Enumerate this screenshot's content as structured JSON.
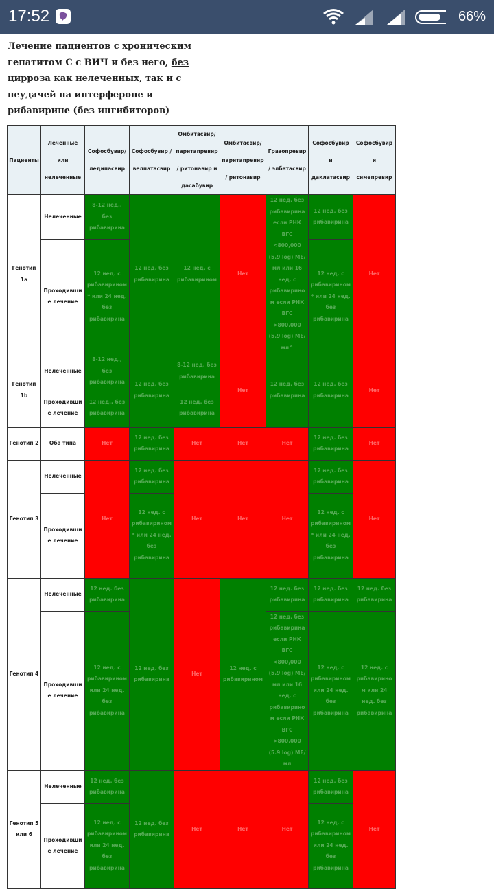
{
  "status_bar": {
    "time": "17:52",
    "battery": "66%"
  },
  "article": {
    "title_start": "Лечение пациентов с хроническим гепатитом С с ВИЧ и без него,",
    "title_link": "без цирроза",
    "title_end": "как нелеченных, так и с неудачей на интерфероне и рибавирине (без ингибиторов)"
  },
  "table": {
    "header": [
      "Пациенты",
      "Леченные или нелеченные",
      "Софосбувир/ ледипасвир",
      "Софосбувир / велпатасвир",
      "Омбитасвир/ паритапревир/ ритонавир и дасабувир",
      "Омбитасвир/ паритапревир/ ритонавир",
      "Гразопревир/ элбатасвир",
      "Софосбувир и даклатасвир",
      "Софосбувир и симепревир"
    ],
    "groups": [
      {
        "genotype": "Генотип 1a",
        "rows": [
          {
            "patients": "Нелеченные",
            "cells": [
              {
                "text": "8-12 нед., без рибавирина",
                "color": "green"
              },
              {
                "text": "12 нед. без рибавирина",
                "color": "green"
              },
              {
                "text": "12 нед. с рибавирином",
                "color": "green"
              },
              {
                "text": "Нет",
                "color": "red"
              },
              {
                "text": "12 нед. без рибавирина если РНК ВГС <800,000 (5.9 log) МЕ/мл или 16 нед. с рибавирином если РНК ВГС >800,000 (5.9 log) МЕ/мл^",
                "color": "green"
              },
              {
                "text": "12 нед. без рибавирина",
                "color": "green"
              },
              {
                "text": "Нет",
                "color": "red"
              }
            ]
          },
          {
            "patients": "Проходившие лечение",
            "cells": [
              {
                "text": "12 нед. с рибавирином* или 24 нед. без рибавирина",
                "color": "green"
              },
              {
                "text": "12 нед. с рибавирином* или 24 нед. без рибавирина",
                "color": "green"
              }
            ]
          }
        ]
      },
      {
        "genotype": "Генотип 1b",
        "rows": [
          {
            "patients": "Нелеченные",
            "cells": [
              {
                "text": "8-12 нед., без рибавирина",
                "color": "green"
              },
              {
                "text": "12 нед. без рибавирина",
                "color": "green"
              },
              {
                "text": "8-12 нед. без рибавирина",
                "color": "green"
              },
              {
                "text": "Нет",
                "color": "red"
              },
              {
                "text": "12 нед. без рибавирина",
                "color": "green"
              },
              {
                "text": "12 нед. без рибавирина",
                "color": "green"
              },
              {
                "text": "Нет",
                "color": "red"
              }
            ]
          },
          {
            "patients": "Проходившие лечение",
            "cells": [
              {
                "text": "12 нед., без рибавирина",
                "color": "green"
              },
              {
                "text": "12 нед. без рибавирина",
                "color": "green"
              }
            ]
          }
        ]
      },
      {
        "genotype": "Генотип 2",
        "rows": [
          {
            "patients": "Оба типа",
            "cells": [
              {
                "text": "Нет",
                "color": "red"
              },
              {
                "text": "12 нед. без рибавирина",
                "color": "green"
              },
              {
                "text": "Нет",
                "color": "red"
              },
              {
                "text": "Нет",
                "color": "red"
              },
              {
                "text": "Нет",
                "color": "red"
              },
              {
                "text": "12 нед. без рибавирина",
                "color": "green"
              },
              {
                "text": "Нет",
                "color": "red"
              }
            ]
          }
        ]
      },
      {
        "genotype": "Генотип 3",
        "rows": [
          {
            "patients": "Нелеченные",
            "cells": [
              {
                "text": "Нет",
                "color": "red"
              },
              {
                "text": "12 нед. без рибавирина",
                "color": "green"
              },
              {
                "text": "Нет",
                "color": "red"
              },
              {
                "text": "Нет",
                "color": "red"
              },
              {
                "text": "Нет",
                "color": "red"
              },
              {
                "text": "12 нед. без рибавирина",
                "color": "green"
              },
              {
                "text": "Нет",
                "color": "red"
              }
            ]
          },
          {
            "patients": "Проходившие лечение",
            "cells": [
              {
                "text": "12 нед. с рибавирином* или 24 нед. без рибавирина",
                "color": "green"
              },
              {
                "text": "12 нед. с рибавирином* или 24 нед. без рибавирина",
                "color": "green"
              }
            ]
          }
        ]
      },
      {
        "genotype": "Генотип 4",
        "rows": [
          {
            "patients": "Нелеченные",
            "cells": [
              {
                "text": "12 нед. без рибавирина",
                "color": "green"
              },
              {
                "text": "12 нед. без рибавирина",
                "color": "green"
              },
              {
                "text": "Нет",
                "color": "red"
              },
              {
                "text": "12 нед. с рибавирином",
                "color": "green"
              },
              {
                "text": "12 нед. без рибавирина",
                "color": "green"
              },
              {
                "text": "12 нед. без рибавирина",
                "color": "green"
              },
              {
                "text": "12 нед. без рибавирина",
                "color": "green"
              }
            ]
          },
          {
            "patients": "Проходившие лечение",
            "cells": [
              {
                "text": "12 нед. с рибавирином или 24 нед. без рибавирина",
                "color": "green"
              },
              {
                "text": "12 нед. без рибавирина если РНК ВГС <800,000 (5.9 log) МЕ/мл или 16 нед. с рибавирином если РНК ВГС >800,000 (5.9 log) МЕ/мл",
                "color": "green"
              },
              {
                "text": "12 нед. с рибавирином или 24 нед. без рибавирина",
                "color": "green"
              },
              {
                "text": "12 нед. с рибавирином или 24 нед. без рибавирина",
                "color": "green"
              }
            ]
          }
        ]
      },
      {
        "genotype": "Генотип 5 или 6",
        "rows": [
          {
            "patients": "Нелеченные",
            "cells": [
              {
                "text": "12 нед. без рибавирина",
                "color": "green"
              },
              {
                "text": "12 нед. без рибавирина",
                "color": "green"
              },
              {
                "text": "Нет",
                "color": "red"
              },
              {
                "text": "Нет",
                "color": "red"
              },
              {
                "text": "Нет",
                "color": "red"
              },
              {
                "text": "12 нед. без рибавирина",
                "color": "green"
              },
              {
                "text": "Нет",
                "color": "red"
              }
            ]
          },
          {
            "patients": "Проходившие лечение",
            "cells": [
              {
                "text": "12 нед. с рибавирином или 24 нед. без рибавирина",
                "color": "green"
              },
              {
                "text": "12 нед. с рибавирином или 24 нед. без рибавирина",
                "color": "green"
              }
            ]
          }
        ]
      }
    ]
  }
}
